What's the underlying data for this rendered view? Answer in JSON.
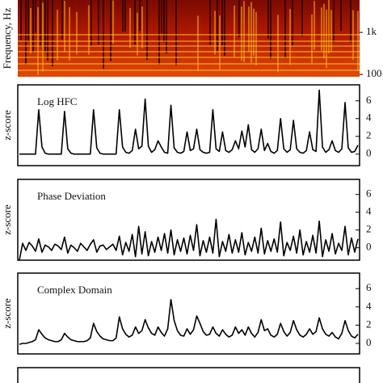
{
  "chart_data": [
    {
      "type": "spectrogram",
      "ylabel": "Frequency, Hz",
      "log": true,
      "ylim": [
        88,
        5900
      ],
      "yticks": [
        {
          "value": 1000,
          "label": "1k"
        },
        {
          "value": 100,
          "label": "100"
        }
      ]
    },
    {
      "type": "line",
      "title": "Log HFC",
      "ylabel": "z-score",
      "color": "#000000",
      "ylim": [
        -1.3,
        7.8
      ],
      "yticks": [
        0,
        2,
        4,
        6
      ],
      "values": [
        0,
        0,
        0,
        0,
        0,
        0,
        5.0,
        0.8,
        0.1,
        0,
        0,
        0,
        0,
        0,
        4.8,
        0.6,
        0.1,
        0,
        0,
        0,
        0,
        0,
        0,
        5.0,
        0.7,
        0.1,
        0,
        0,
        0,
        0,
        0,
        5.0,
        0.8,
        0.2,
        0.1,
        0.4,
        2.8,
        0.6,
        0.9,
        6.2,
        0.9,
        0.2,
        0.5,
        1.5,
        0.8,
        0.2,
        0.1,
        5.5,
        0.7,
        0.2,
        0.1,
        0.3,
        2.5,
        0.4,
        0.6,
        2.8,
        0.5,
        0.2,
        0.1,
        0.2,
        5.0,
        0.6,
        0.3,
        2.5,
        0.4,
        0.2,
        0.5,
        1.5,
        0.6,
        2.6,
        0.8,
        3.3,
        0.5,
        0.2,
        0.6,
        2.8,
        0.4,
        1.2,
        0.3,
        0.1,
        0.4,
        4.0,
        0.6,
        0.2,
        0.5,
        3.8,
        0.6,
        0.2,
        0.1,
        0.4,
        2.5,
        0.5,
        0.3,
        7.2,
        0.8,
        0.2,
        0.5,
        1.5,
        0.4,
        0.2,
        0.6,
        5.8,
        0.7,
        0.2,
        0.3,
        1.0
      ]
    },
    {
      "type": "line",
      "title": "Phase Deviation",
      "ylabel": "z-score",
      "color": "#000000",
      "ylim": [
        -1.4,
        7.7
      ],
      "yticks": [
        0,
        2,
        4,
        6
      ],
      "values": [
        -1.4,
        0.5,
        -0.3,
        0.6,
        0.2,
        -0.4,
        1.0,
        -0.5,
        0.3,
        0.1,
        -0.3,
        0.4,
        0.2,
        -0.2,
        1.2,
        -0.6,
        0.3,
        0.0,
        -0.4,
        0.5,
        0.1,
        -0.3,
        0.4,
        0.9,
        -0.5,
        0.2,
        0.3,
        -0.2,
        0.1,
        0.4,
        -0.3,
        1.3,
        -0.8,
        0.6,
        -0.4,
        1.5,
        -1.0,
        2.4,
        -0.7,
        1.8,
        -0.9,
        0.7,
        -0.5,
        1.2,
        -0.3,
        1.6,
        -0.6,
        2.0,
        -0.8,
        0.9,
        -0.4,
        1.1,
        -0.7,
        1.4,
        -0.3,
        2.6,
        -0.9,
        0.8,
        -0.5,
        1.2,
        -0.6,
        3.2,
        -1.0,
        0.7,
        -0.4,
        1.5,
        -0.6,
        0.9,
        -0.5,
        1.7,
        -0.8,
        0.6,
        -0.4,
        1.2,
        -0.6,
        2.2,
        -0.7,
        0.8,
        -0.4,
        1.0,
        -0.5,
        2.9,
        -0.9,
        0.6,
        -0.3,
        1.3,
        -0.6,
        2.0,
        -0.8,
        0.7,
        -0.5,
        1.4,
        -0.6,
        3.0,
        -1.0,
        0.9,
        -0.4,
        1.6,
        -0.7,
        0.5,
        -0.3,
        2.4,
        -0.8,
        1.1,
        -0.5,
        1.0
      ]
    },
    {
      "type": "line",
      "title": "Complex Domain",
      "ylabel": "z-score",
      "color": "#000000",
      "ylim": [
        -1.15,
        7.7
      ],
      "yticks": [
        0,
        2,
        4,
        6
      ],
      "values": [
        -0.1,
        0,
        0,
        0.1,
        0.2,
        0.4,
        1.5,
        1.0,
        0.6,
        0.4,
        0.3,
        0.2,
        0.2,
        0.4,
        1.1,
        0.7,
        0.4,
        0.3,
        0.2,
        0.2,
        0.2,
        0.3,
        0.6,
        2.2,
        1.3,
        0.8,
        0.5,
        0.4,
        0.3,
        0.3,
        0.6,
        2.9,
        1.6,
        1.0,
        0.7,
        0.9,
        1.8,
        1.1,
        1.4,
        2.6,
        1.7,
        1.1,
        0.9,
        1.8,
        1.2,
        0.8,
        1.6,
        4.8,
        2.5,
        1.4,
        0.9,
        0.8,
        1.6,
        1.0,
        1.5,
        3.0,
        2.2,
        1.3,
        0.9,
        1.0,
        1.8,
        1.1,
        0.8,
        1.5,
        1.0,
        0.7,
        0.9,
        1.8,
        1.1,
        1.5,
        0.9,
        1.8,
        1.1,
        0.7,
        1.2,
        2.6,
        1.4,
        1.6,
        0.9,
        0.7,
        1.0,
        2.2,
        1.3,
        0.8,
        1.2,
        2.5,
        1.5,
        0.9,
        0.7,
        1.0,
        1.6,
        1.0,
        1.3,
        2.8,
        1.6,
        1.0,
        0.8,
        1.2,
        0.7,
        0.5,
        1.1,
        2.5,
        1.4,
        0.8,
        0.6,
        1.0
      ]
    }
  ]
}
